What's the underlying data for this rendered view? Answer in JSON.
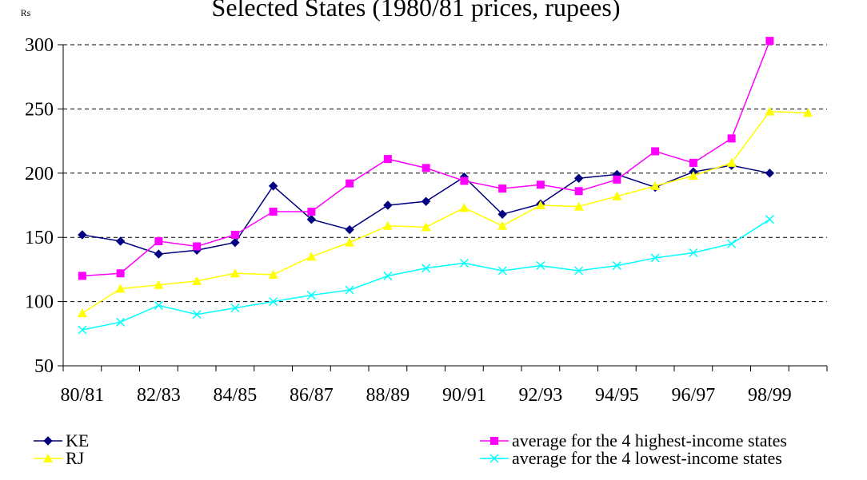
{
  "chart_data": {
    "type": "line",
    "title": "Selected States (1980/81 prices, rupees)",
    "y_label": "Rs",
    "categories": [
      "80/81",
      null,
      "82/83",
      null,
      "84/85",
      null,
      "86/87",
      null,
      "88/89",
      null,
      "90/91",
      null,
      "92/93",
      null,
      "94/95",
      null,
      "96/97",
      null,
      "98/99",
      null
    ],
    "ylim": [
      50,
      300
    ],
    "yticks": [
      50,
      100,
      150,
      200,
      250,
      300
    ],
    "grid": true,
    "series": [
      {
        "name": "KE",
        "color": "#000080",
        "marker": "diamond",
        "values": [
          152,
          147,
          137,
          140,
          146,
          190,
          164,
          156,
          175,
          178,
          197,
          168,
          176,
          196,
          199,
          189,
          201,
          206,
          200,
          null
        ]
      },
      {
        "name": "RJ",
        "color": "#ffff00",
        "marker": "triangle",
        "values": [
          91,
          110,
          113,
          116,
          122,
          121,
          135,
          146,
          159,
          158,
          173,
          159,
          175,
          174,
          182,
          190,
          198,
          208,
          248,
          247
        ]
      },
      {
        "name": "average for the 4 highest-income states",
        "color": "#ff00ff",
        "marker": "square",
        "values": [
          120,
          122,
          147,
          143,
          152,
          170,
          170,
          192,
          211,
          204,
          194,
          188,
          191,
          186,
          195,
          217,
          208,
          227,
          303,
          null
        ]
      },
      {
        "name": "average for the 4 lowest-income states",
        "color": "#00ffff",
        "marker": "x",
        "values": [
          78,
          84,
          97,
          90,
          95,
          100,
          105,
          109,
          120,
          126,
          130,
          124,
          128,
          124,
          128,
          134,
          138,
          145,
          164,
          null
        ]
      }
    ]
  }
}
